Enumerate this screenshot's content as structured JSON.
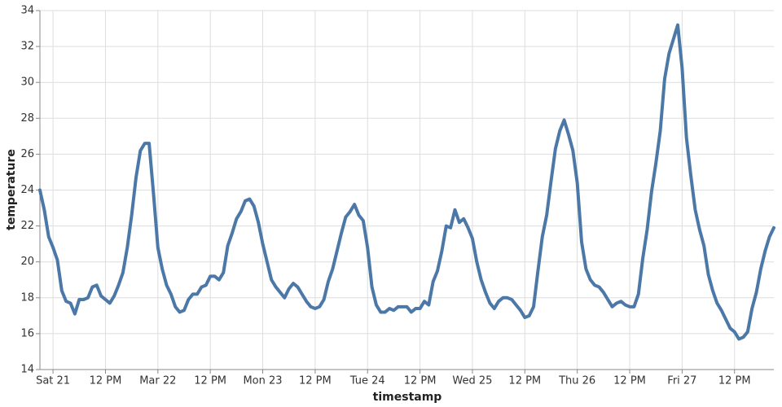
{
  "chart_data": {
    "type": "line",
    "x_label": "timestamp",
    "y_label": "temperature",
    "x": [
      -3,
      -2,
      -1,
      0,
      1,
      2,
      3,
      4,
      5,
      6,
      7,
      8,
      9,
      10,
      11,
      12,
      13,
      14,
      15,
      16,
      17,
      18,
      19,
      20,
      21,
      22,
      23,
      24,
      25,
      26,
      27,
      28,
      29,
      30,
      31,
      32,
      33,
      34,
      35,
      36,
      37,
      38,
      39,
      40,
      41,
      42,
      43,
      44,
      45,
      46,
      47,
      48,
      49,
      50,
      51,
      52,
      53,
      54,
      55,
      56,
      57,
      58,
      59,
      60,
      61,
      62,
      63,
      64,
      65,
      66,
      67,
      68,
      69,
      70,
      71,
      72,
      73,
      74,
      75,
      76,
      77,
      78,
      79,
      80,
      81,
      82,
      83,
      84,
      85,
      86,
      87,
      88,
      89,
      90,
      91,
      92,
      93,
      94,
      95,
      96,
      97,
      98,
      99,
      100,
      101,
      102,
      103,
      104,
      105,
      106,
      107,
      108,
      109,
      110,
      111,
      112,
      113,
      114,
      115,
      116,
      117,
      118,
      119,
      120,
      121,
      122,
      123,
      124,
      125,
      126,
      127,
      128,
      129,
      130,
      131,
      132,
      133,
      134,
      135,
      136,
      137,
      138,
      139,
      140,
      141,
      142,
      143,
      144,
      145,
      146,
      147,
      148,
      149,
      150,
      151,
      152,
      153,
      154,
      155,
      156,
      157,
      158,
      159,
      160,
      161,
      162,
      163,
      164,
      165
    ],
    "series": [
      {
        "name": "temperature",
        "color": "#4c78a8",
        "values": [
          24.0,
          22.9,
          21.4,
          20.8,
          20.1,
          18.4,
          17.8,
          17.7,
          17.1,
          17.9,
          17.9,
          18.0,
          18.6,
          18.7,
          18.1,
          17.9,
          17.7,
          18.1,
          18.7,
          19.4,
          20.8,
          22.6,
          24.7,
          26.2,
          26.6,
          26.6,
          23.8,
          20.8,
          19.6,
          18.7,
          18.2,
          17.5,
          17.2,
          17.3,
          17.9,
          18.2,
          18.2,
          18.6,
          18.7,
          19.2,
          19.2,
          19.0,
          19.4,
          20.9,
          21.6,
          22.4,
          22.8,
          23.4,
          23.5,
          23.1,
          22.2,
          21.0,
          20.0,
          19.0,
          18.6,
          18.3,
          18.0,
          18.5,
          18.8,
          18.6,
          18.2,
          17.8,
          17.5,
          17.4,
          17.5,
          17.9,
          18.9,
          19.6,
          20.6,
          21.6,
          22.5,
          22.8,
          23.2,
          22.6,
          22.3,
          20.8,
          18.6,
          17.6,
          17.2,
          17.2,
          17.4,
          17.3,
          17.5,
          17.5,
          17.5,
          17.2,
          17.4,
          17.4,
          17.8,
          17.6,
          18.9,
          19.5,
          20.6,
          22.0,
          21.9,
          22.9,
          22.2,
          22.4,
          21.9,
          21.3,
          20.0,
          19.0,
          18.3,
          17.7,
          17.4,
          17.8,
          18.0,
          18.0,
          17.9,
          17.6,
          17.3,
          16.9,
          17.0,
          17.5,
          19.5,
          21.4,
          22.6,
          24.5,
          26.3,
          27.3,
          27.9,
          27.1,
          26.2,
          24.4,
          21.1,
          19.6,
          19.0,
          18.7,
          18.6,
          18.3,
          17.9,
          17.5,
          17.7,
          17.8,
          17.6,
          17.5,
          17.5,
          18.2,
          20.2,
          21.8,
          23.9,
          25.5,
          27.3,
          30.2,
          31.6,
          32.4,
          33.2,
          30.8,
          26.9,
          24.8,
          22.9,
          21.8,
          20.9,
          19.3,
          18.4,
          17.7,
          17.3,
          16.8,
          16.3,
          16.1,
          15.7,
          15.8,
          16.1,
          17.4,
          18.3,
          19.6,
          20.6,
          21.4,
          21.9
        ]
      }
    ],
    "xlim": [
      -3,
      165
    ],
    "xticks": [
      {
        "value": 0,
        "label": "Sat 21"
      },
      {
        "value": 12,
        "label": "12 PM"
      },
      {
        "value": 24,
        "label": "Mar 22"
      },
      {
        "value": 36,
        "label": "12 PM"
      },
      {
        "value": 48,
        "label": "Mon 23"
      },
      {
        "value": 60,
        "label": "12 PM"
      },
      {
        "value": 72,
        "label": "Tue 24"
      },
      {
        "value": 84,
        "label": "12 PM"
      },
      {
        "value": 96,
        "label": "Wed 25"
      },
      {
        "value": 108,
        "label": "12 PM"
      },
      {
        "value": 120,
        "label": "Thu 26"
      },
      {
        "value": 132,
        "label": "12 PM"
      },
      {
        "value": 144,
        "label": "Fri 27"
      },
      {
        "value": 156,
        "label": "12 PM"
      }
    ],
    "ylim": [
      14,
      34
    ],
    "yticks": [
      14,
      16,
      18,
      20,
      22,
      24,
      26,
      28,
      30,
      32,
      34
    ],
    "grid": true
  }
}
